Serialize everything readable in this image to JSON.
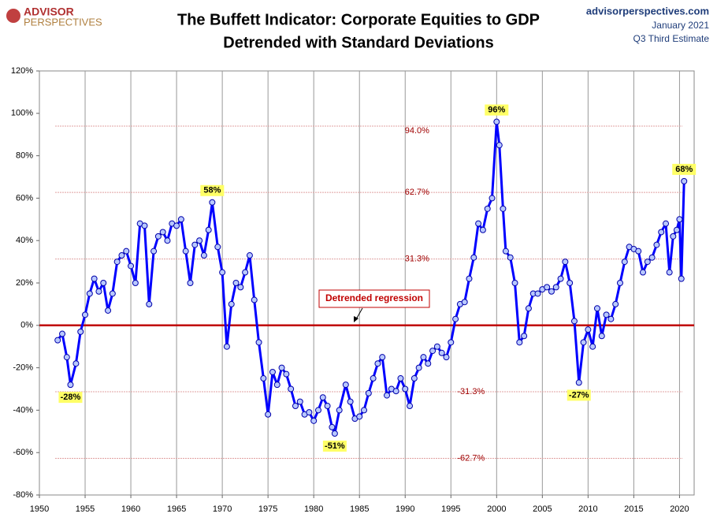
{
  "chart_data": {
    "type": "line",
    "title": "The Buffett Indicator: Corporate Equities to GDP",
    "subtitle": "Detrended with Standard Deviations",
    "logo": [
      "ADVISOR",
      "PERSPECTIVES"
    ],
    "source": [
      "advisorperspectives.com",
      "January 2021",
      "Q3 Third Estimate"
    ],
    "color": "#0000ff",
    "x": [
      1952.0,
      1952.5,
      1953.0,
      1953.4,
      1954.0,
      1954.5,
      1955.0,
      1955.5,
      1956.0,
      1956.5,
      1957.0,
      1957.5,
      1958.0,
      1958.5,
      1959.0,
      1959.5,
      1960.0,
      1960.5,
      1961.0,
      1961.5,
      1962.0,
      1962.5,
      1963.0,
      1963.5,
      1964.0,
      1964.5,
      1965.0,
      1965.5,
      1966.0,
      1966.5,
      1967.0,
      1967.5,
      1968.0,
      1968.5,
      1968.9,
      1969.5,
      1970.0,
      1970.5,
      1971.0,
      1971.5,
      1972.0,
      1972.5,
      1973.0,
      1973.5,
      1974.0,
      1974.5,
      1975.0,
      1975.5,
      1976.0,
      1976.5,
      1977.0,
      1977.5,
      1978.0,
      1978.5,
      1979.0,
      1979.5,
      1980.0,
      1980.5,
      1981.0,
      1981.5,
      1982.0,
      1982.3,
      1982.8,
      1983.5,
      1984.0,
      1984.5,
      1985.0,
      1985.5,
      1986.0,
      1986.5,
      1987.0,
      1987.5,
      1988.0,
      1988.5,
      1989.0,
      1989.5,
      1990.0,
      1990.5,
      1991.0,
      1991.5,
      1992.0,
      1992.5,
      1993.0,
      1993.5,
      1994.0,
      1994.5,
      1995.0,
      1995.5,
      1996.0,
      1996.5,
      1997.0,
      1997.5,
      1998.0,
      1998.5,
      1999.0,
      1999.5,
      2000.0,
      2000.3,
      2000.7,
      2001.0,
      2001.5,
      2002.0,
      2002.5,
      2003.0,
      2003.5,
      2004.0,
      2004.5,
      2005.0,
      2005.5,
      2006.0,
      2006.5,
      2007.0,
      2007.5,
      2008.0,
      2008.5,
      2009.0,
      2009.5,
      2010.0,
      2010.5,
      2011.0,
      2011.5,
      2012.0,
      2012.5,
      2013.0,
      2013.5,
      2014.0,
      2014.5,
      2015.0,
      2015.5,
      2016.0,
      2016.5,
      2017.0,
      2017.5,
      2018.0,
      2018.5,
      2018.9,
      2019.3,
      2019.7,
      2020.0,
      2020.2,
      2020.5
    ],
    "values": [
      -7,
      -4,
      -15,
      -28,
      -18,
      -3,
      5,
      15,
      22,
      16,
      20,
      7,
      15,
      30,
      33,
      35,
      28,
      20,
      48,
      47,
      10,
      35,
      42,
      44,
      40,
      48,
      47,
      50,
      35,
      20,
      38,
      40,
      33,
      45,
      58,
      37,
      25,
      -10,
      10,
      20,
      18,
      25,
      33,
      12,
      -8,
      -25,
      -42,
      -22,
      -28,
      -20,
      -23,
      -30,
      -38,
      -36,
      -42,
      -41,
      -45,
      -40,
      -34,
      -38,
      -48,
      -51,
      -40,
      -28,
      -36,
      -44,
      -43,
      -40,
      -32,
      -25,
      -18,
      -15,
      -33,
      -30,
      -31,
      -25,
      -30,
      -38,
      -25,
      -20,
      -15,
      -18,
      -12,
      -10,
      -13,
      -15,
      -8,
      3,
      10,
      11,
      22,
      32,
      48,
      45,
      55,
      60,
      96,
      85,
      55,
      35,
      32,
      20,
      -8,
      -5,
      8,
      15,
      15,
      17,
      18,
      16,
      18,
      22,
      30,
      20,
      2,
      -27,
      -8,
      -2,
      -10,
      8,
      -5,
      5,
      3,
      10,
      20,
      30,
      37,
      36,
      35,
      25,
      30,
      32,
      38,
      44,
      48,
      25,
      42,
      45,
      50,
      22,
      68
    ],
    "xlim": [
      1950,
      2021.6
    ],
    "ylim": [
      -80,
      120
    ],
    "xticks": [
      1950,
      1955,
      1960,
      1965,
      1970,
      1975,
      1980,
      1985,
      1990,
      1995,
      2000,
      2005,
      2010,
      2015,
      2020
    ],
    "yticks": [
      {
        "value": -80,
        "label": "-80%"
      },
      {
        "value": -60,
        "label": "-60%"
      },
      {
        "value": -40,
        "label": "-40%"
      },
      {
        "value": -20,
        "label": "-20%"
      },
      {
        "value": 0,
        "label": "0%"
      },
      {
        "value": 20,
        "label": "20%"
      },
      {
        "value": 40,
        "label": "40%"
      },
      {
        "value": 60,
        "label": "60%"
      },
      {
        "value": 80,
        "label": "80%"
      },
      {
        "value": 100,
        "label": "100%"
      },
      {
        "value": 120,
        "label": "120%"
      }
    ],
    "grid": true,
    "regression": {
      "value": 0,
      "label": "Detrended regression"
    },
    "std_lines": [
      {
        "value": 94,
        "label": "94.0%"
      },
      {
        "value": 62.7,
        "label": "62.7%"
      },
      {
        "value": 31.3,
        "label": "31.3%"
      },
      {
        "value": -31.3,
        "label": "-31.3%"
      },
      {
        "value": -62.7,
        "label": "-62.7%"
      }
    ],
    "annotations": [
      {
        "x": 1953.4,
        "value": -28,
        "label": "-28%"
      },
      {
        "x": 1968.9,
        "value": 58,
        "label": "58%"
      },
      {
        "x": 1982.3,
        "value": -51,
        "label": "-51%"
      },
      {
        "x": 2000.0,
        "value": 96,
        "label": "96%"
      },
      {
        "x": 2009.0,
        "value": -27,
        "label": "-27%"
      },
      {
        "x": 2020.5,
        "value": 68,
        "label": "68%"
      }
    ]
  }
}
